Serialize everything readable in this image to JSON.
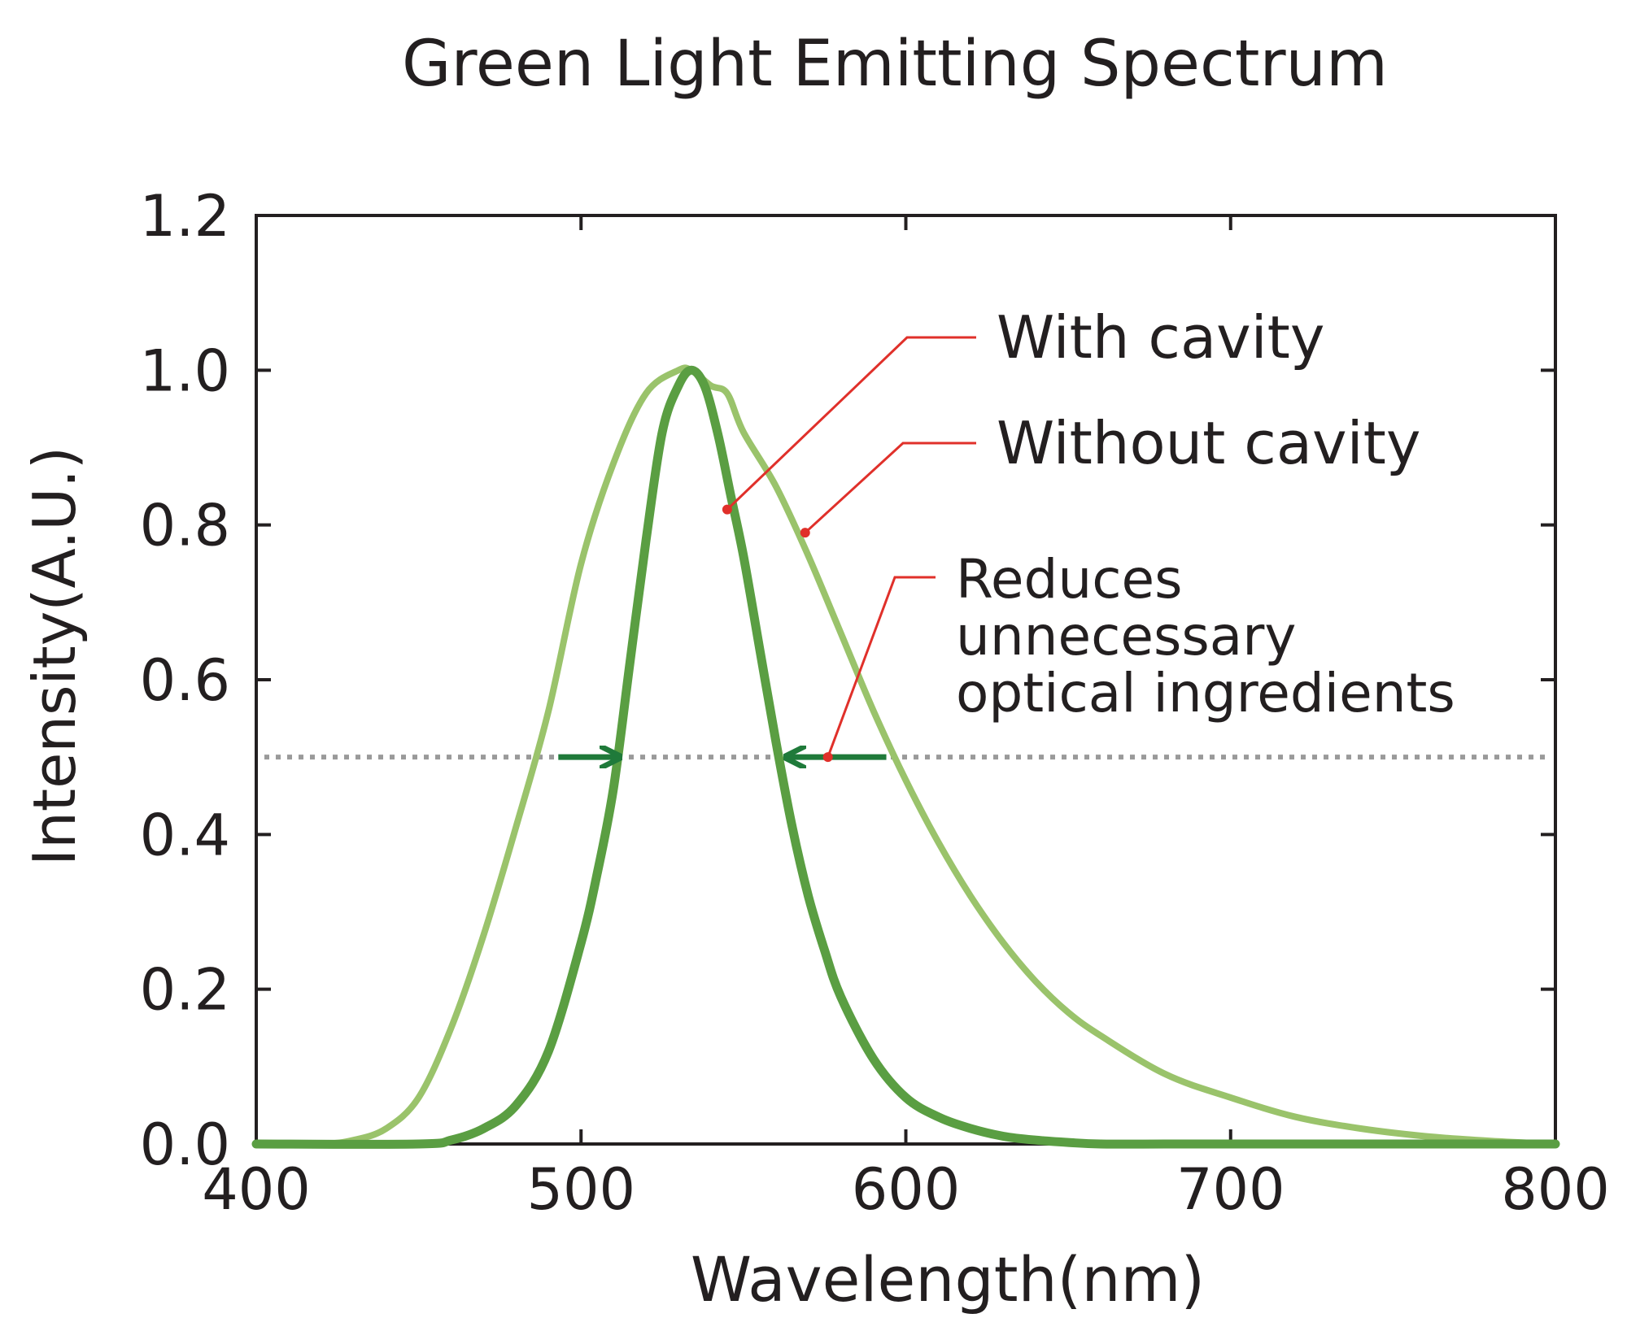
{
  "chart_data": {
    "type": "line",
    "title": "Green Light Emitting Spectrum",
    "xlabel": "Wavelength(nm)",
    "ylabel": "Intensity(A.U.)",
    "xlim": [
      400,
      800
    ],
    "ylim": [
      0,
      1.2
    ],
    "x_ticks": [
      400,
      500,
      600,
      700,
      800
    ],
    "x_tick_labels": [
      "400",
      "500",
      "600",
      "700",
      "800"
    ],
    "y_ticks": [
      0,
      0.2,
      0.4,
      0.6,
      0.8,
      1.0,
      1.2
    ],
    "y_tick_labels": [
      "0.0",
      "0.2",
      "0.4",
      "0.6",
      "0.8",
      "1.0",
      "1.2"
    ],
    "grid": false,
    "legend": "none (series labelled by callouts)",
    "series": [
      {
        "name": "Without cavity",
        "color": "#9ac36b",
        "x": [
          400,
          420,
          430,
          440,
          450,
          460,
          470,
          480,
          490,
          500,
          510,
          520,
          530,
          534,
          540,
          545,
          550,
          560,
          570,
          580,
          590,
          600,
          610,
          620,
          630,
          640,
          650,
          660,
          680,
          700,
          720,
          740,
          760,
          780,
          800
        ],
        "y": [
          0.0,
          0.0,
          0.005,
          0.02,
          0.06,
          0.15,
          0.27,
          0.41,
          0.56,
          0.75,
          0.88,
          0.97,
          1.0,
          1.0,
          0.98,
          0.97,
          0.92,
          0.85,
          0.76,
          0.66,
          0.56,
          0.47,
          0.39,
          0.32,
          0.26,
          0.21,
          0.17,
          0.14,
          0.09,
          0.06,
          0.035,
          0.02,
          0.01,
          0.004,
          0.0
        ]
      },
      {
        "name": "With cavity",
        "color": "#5a9e42",
        "x": [
          400,
          450,
          460,
          470,
          480,
          490,
          500,
          505,
          510,
          515,
          520,
          525,
          530,
          534,
          538,
          542,
          546,
          550,
          555,
          560,
          565,
          570,
          575,
          580,
          590,
          600,
          610,
          620,
          630,
          640,
          650,
          660,
          680,
          700,
          800
        ],
        "y": [
          0.0,
          0.0,
          0.005,
          0.02,
          0.05,
          0.12,
          0.26,
          0.35,
          0.46,
          0.62,
          0.78,
          0.92,
          0.98,
          1.0,
          0.98,
          0.92,
          0.84,
          0.76,
          0.64,
          0.52,
          0.41,
          0.32,
          0.25,
          0.19,
          0.11,
          0.06,
          0.035,
          0.02,
          0.01,
          0.005,
          0.002,
          0.0,
          0.0,
          0.0,
          0.0
        ]
      }
    ],
    "reference_line": {
      "y": 0.5,
      "style": "dotted",
      "color": "#9a9a9a"
    },
    "arrows": [
      {
        "from_x": 493,
        "to_x": 512,
        "y": 0.5,
        "color": "#1f7a3a"
      },
      {
        "from_x": 594,
        "to_x": 563,
        "y": 0.5,
        "color": "#1f7a3a"
      }
    ],
    "annotations": [
      {
        "lines": [
          "With cavity"
        ],
        "target": [
          545,
          0.82
        ],
        "color": "#e0302a"
      },
      {
        "lines": [
          "Without cavity"
        ],
        "target": [
          569,
          0.79
        ],
        "color": "#e0302a"
      },
      {
        "lines": [
          "Reduces",
          "unnecessary",
          "optical ingredients"
        ],
        "target": [
          576,
          0.5
        ],
        "color": "#e0302a"
      }
    ]
  }
}
